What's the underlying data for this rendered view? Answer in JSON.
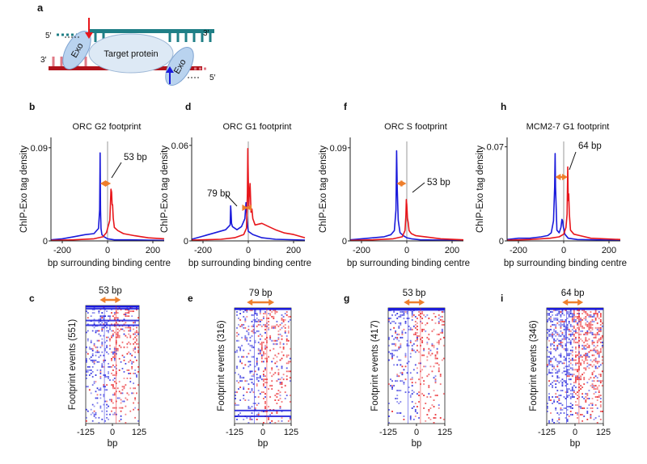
{
  "figure": {
    "diagram": {
      "letter": "a",
      "target_label": "Target protein",
      "exo_label": "Exo",
      "prime5": "5′",
      "prime3": "3′"
    },
    "x_axis_label": "bp surrounding binding centre",
    "y_axis_label": "ChIP-Exo tag density",
    "heatmap_y_prefix": "Footprint events",
    "heatmap_x_label": "bp"
  },
  "colors": {
    "series_a": "#1a1adb",
    "series_b": "#e8161b",
    "arrow": "#ee7f2d",
    "grey_line": "#9a9a9a"
  },
  "chart_data": [
    {
      "type": "line",
      "panel": "b",
      "title": "ORC G2 footprint",
      "xlabel": "bp surrounding binding centre",
      "ylabel": "ChIP-Exo tag density",
      "xlim": [
        -250,
        250
      ],
      "ylim": [
        0,
        0.1
      ],
      "xticks": [
        "-200",
        "0",
        "200"
      ],
      "yticks": [
        "0",
        "0.09"
      ],
      "annotation": "53 bp",
      "series": [
        {
          "color": "#1a1adb",
          "x": [
            -250,
            -200,
            -150,
            -100,
            -60,
            -40,
            -35,
            -33,
            -31,
            -29,
            -25,
            -15,
            0,
            30,
            100,
            250
          ],
          "y": [
            0.001,
            0.002,
            0.004,
            0.006,
            0.007,
            0.012,
            0.03,
            0.085,
            0.03,
            0.012,
            0.006,
            0.004,
            0.002,
            0.001,
            0.001,
            0.0005
          ]
        },
        {
          "color": "#e8161b",
          "x": [
            -250,
            -150,
            -60,
            -20,
            -5,
            10,
            15,
            18,
            20,
            22,
            25,
            30,
            45,
            70,
            120,
            180,
            250
          ],
          "y": [
            0.0005,
            0.001,
            0.002,
            0.004,
            0.008,
            0.02,
            0.05,
            0.047,
            0.035,
            0.035,
            0.022,
            0.013,
            0.01,
            0.007,
            0.005,
            0.003,
            0.002
          ]
        }
      ]
    },
    {
      "type": "line",
      "panel": "d",
      "title": "ORC G1 footprint",
      "xlabel": "bp surrounding binding centre",
      "ylabel": "ChIP-Exo tag density",
      "xlim": [
        -250,
        250
      ],
      "ylim": [
        0,
        0.065
      ],
      "xticks": [
        "-200",
        "0",
        "200"
      ],
      "yticks": [
        "0",
        "0.06"
      ],
      "annotation": "79 bp",
      "series": [
        {
          "color": "#1a1adb",
          "x": [
            -250,
            -200,
            -150,
            -100,
            -80,
            -78,
            -76,
            -74,
            -70,
            -50,
            -30,
            -15,
            -10,
            -8,
            -5,
            0,
            20,
            60,
            120,
            250
          ],
          "y": [
            0.001,
            0.003,
            0.005,
            0.007,
            0.01,
            0.022,
            0.018,
            0.011,
            0.009,
            0.007,
            0.009,
            0.014,
            0.024,
            0.02,
            0.012,
            0.006,
            0.004,
            0.002,
            0.001,
            0.0005
          ]
        },
        {
          "color": "#e8161b",
          "x": [
            -250,
            -120,
            -60,
            -20,
            -8,
            -4,
            -2,
            0,
            2,
            4,
            8,
            12,
            16,
            20,
            30,
            60,
            90,
            120,
            160,
            200,
            250
          ],
          "y": [
            0.0005,
            0.001,
            0.002,
            0.004,
            0.008,
            0.03,
            0.058,
            0.04,
            0.022,
            0.028,
            0.036,
            0.018,
            0.02,
            0.014,
            0.01,
            0.011,
            0.009,
            0.007,
            0.005,
            0.004,
            0.002
          ]
        }
      ]
    },
    {
      "type": "line",
      "panel": "f",
      "title": "ORC S footprint",
      "xlabel": "bp surrounding binding centre",
      "ylabel": "ChIP-Exo tag density",
      "xlim": [
        -250,
        250
      ],
      "ylim": [
        0,
        0.1
      ],
      "xticks": [
        "-200",
        "0",
        "200"
      ],
      "yticks": [
        "0",
        "0.09"
      ],
      "annotation": "53 bp",
      "series": [
        {
          "color": "#1a1adb",
          "x": [
            -250,
            -200,
            -150,
            -100,
            -70,
            -55,
            -48,
            -45,
            -42,
            -38,
            -30,
            -15,
            0,
            20,
            60,
            250
          ],
          "y": [
            0.001,
            0.002,
            0.003,
            0.004,
            0.006,
            0.01,
            0.03,
            0.087,
            0.05,
            0.02,
            0.008,
            0.005,
            0.003,
            0.002,
            0.001,
            0.0005
          ]
        },
        {
          "color": "#e8161b",
          "x": [
            -250,
            -150,
            -60,
            -20,
            -8,
            -4,
            -2,
            0,
            3,
            6,
            10,
            20,
            40,
            80,
            150,
            250
          ],
          "y": [
            0.0005,
            0.001,
            0.002,
            0.004,
            0.01,
            0.025,
            0.04,
            0.035,
            0.022,
            0.018,
            0.01,
            0.007,
            0.005,
            0.004,
            0.002,
            0.001
          ]
        }
      ]
    },
    {
      "type": "line",
      "panel": "h",
      "title": "MCM2-7 G1 footprint",
      "xlabel": "bp surrounding binding centre",
      "ylabel": "ChIP-Exo tag density",
      "xlim": [
        -250,
        250
      ],
      "ylim": [
        0,
        0.077
      ],
      "xticks": [
        "-200",
        "0",
        "200"
      ],
      "yticks": [
        "0",
        "0.07"
      ],
      "annotation": "64 bp",
      "series": [
        {
          "color": "#1a1adb",
          "x": [
            -250,
            -200,
            -150,
            -100,
            -70,
            -55,
            -45,
            -40,
            -38,
            -36,
            -30,
            -20,
            -12,
            -8,
            -5,
            -2,
            5,
            20,
            60,
            250
          ],
          "y": [
            0.001,
            0.002,
            0.002,
            0.003,
            0.004,
            0.006,
            0.015,
            0.04,
            0.065,
            0.04,
            0.008,
            0.006,
            0.01,
            0.016,
            0.015,
            0.011,
            0.005,
            0.002,
            0.001,
            0.0005
          ]
        },
        {
          "color": "#e8161b",
          "x": [
            -250,
            -150,
            -60,
            -20,
            0,
            10,
            15,
            18,
            20,
            22,
            25,
            30,
            45,
            70,
            120,
            250
          ],
          "y": [
            0.0005,
            0.001,
            0.002,
            0.003,
            0.005,
            0.01,
            0.02,
            0.055,
            0.03,
            0.035,
            0.02,
            0.008,
            0.005,
            0.004,
            0.002,
            0.001
          ]
        }
      ]
    },
    {
      "type": "heatmap",
      "panel": "c",
      "xlim": [
        -125,
        125
      ],
      "xticks": [
        "-125",
        "0",
        "125"
      ],
      "xlabel": "bp",
      "ylabel": "Footprint events (551)",
      "annotation": "53 bp"
    },
    {
      "type": "heatmap",
      "panel": "e",
      "xlim": [
        -125,
        125
      ],
      "xticks": [
        "-125",
        "0",
        "125"
      ],
      "xlabel": "bp",
      "ylabel": "Footprint events (316)",
      "annotation": "79 bp"
    },
    {
      "type": "heatmap",
      "panel": "g",
      "xlim": [
        -125,
        125
      ],
      "xticks": [
        "-125",
        "0",
        "125"
      ],
      "xlabel": "bp",
      "ylabel": "Footprint events (417)",
      "annotation": "53 bp"
    },
    {
      "type": "heatmap",
      "panel": "i",
      "xlim": [
        -125,
        125
      ],
      "xticks": [
        "-125",
        "0",
        "125"
      ],
      "xlabel": "bp",
      "ylabel": "Footprint events (346)",
      "annotation": "64 bp"
    }
  ]
}
